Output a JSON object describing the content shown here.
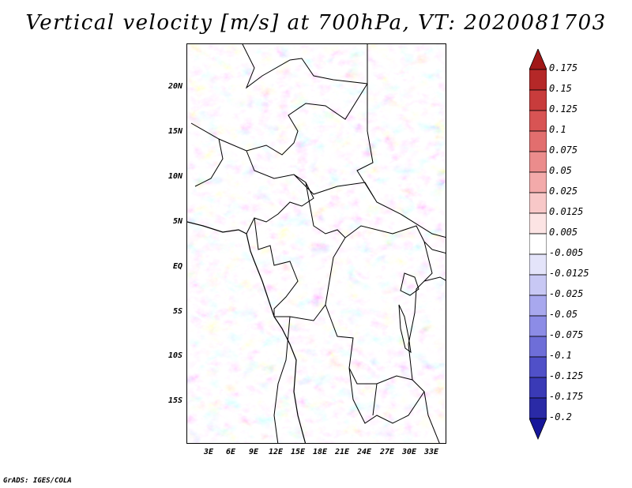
{
  "title": "Vertical velocity [m/s] at 700hPa, VT: 2020081703",
  "credit": "GrADS: IGES/COLA",
  "map": {
    "lat_labels": [
      "20N",
      "15N",
      "10N",
      "5N",
      "EQ",
      "5S",
      "10S",
      "15S"
    ],
    "lon_labels": [
      "3E",
      "6E",
      "9E",
      "12E",
      "15E",
      "18E",
      "21E",
      "24E",
      "27E",
      "30E",
      "33E"
    ]
  },
  "colorbar": {
    "levels": [
      "0.175",
      "0.15",
      "0.125",
      "0.1",
      "0.075",
      "0.05",
      "0.025",
      "0.0125",
      "0.005",
      "-0.005",
      "-0.0125",
      "-0.025",
      "-0.05",
      "-0.075",
      "-0.1",
      "-0.125",
      "-0.175",
      "-0.2"
    ],
    "colors": [
      "#a01818",
      "#b52828",
      "#c83c3c",
      "#d85454",
      "#e26e6e",
      "#eb8c8c",
      "#f3aaaa",
      "#f8c8c8",
      "#fce4e4",
      "#ffffff",
      "#e4e4fa",
      "#c8c8f4",
      "#a8a8ee",
      "#8c8ce6",
      "#6e6ed8",
      "#5050c8",
      "#3a3ab6",
      "#2a2aa6",
      "#16169a"
    ]
  }
}
